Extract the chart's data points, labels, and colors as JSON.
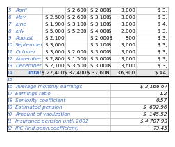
{
  "top_rows": [
    {
      "row": "5",
      "label": "April",
      "c1": "",
      "c2": "$ 2,600",
      "c3": "$ 2,800",
      "c4": "$      3,000",
      "c5": "$ 3,"
    },
    {
      "row": "6",
      "label": "May",
      "c1": "$ 2,500",
      "c2": "$ 2,600",
      "c3": "$ 3,100",
      "c4": "$      3,000",
      "c5": "$ 3,"
    },
    {
      "row": "7",
      "label": "June",
      "c1": "$ 1,900",
      "c2": "$ 3,100",
      "c3": "$ 3,100",
      "c4": "$      3,000",
      "c5": "$ 4,"
    },
    {
      "row": "8",
      "label": "July",
      "c1": "$ 5,000",
      "c2": "$ 5,200",
      "c3": "$ 4,000",
      "c4": "$      2,000",
      "c5": "$ 3,"
    },
    {
      "row": "9",
      "label": "August",
      "c1": "$ 2,100",
      "c2": "",
      "c3": "$ 2,600",
      "c4": "$        800",
      "c5": "$ 3,"
    },
    {
      "row": "10",
      "label": "September",
      "c1": "$ 3,000",
      "c2": "",
      "c3": "$ 3,100",
      "c4": "$      3,600",
      "c5": "$ 3,"
    },
    {
      "row": "11",
      "label": "October",
      "c1": "$ 3,000",
      "c2": "$ 2,000",
      "c3": "$ 3,000",
      "c4": "$      3,600",
      "c5": "$ 3,"
    },
    {
      "row": "12",
      "label": "November",
      "c1": "$ 2,800",
      "c2": "$ 1,500",
      "c3": "$ 3,000",
      "c4": "$      3,600",
      "c5": "$ 3,"
    },
    {
      "row": "13",
      "label": "December",
      "c1": "$ 2,100",
      "c2": "$ 3,500",
      "c3": "$ 3,000",
      "c4": "$      3,600",
      "c5": "$ 3,"
    },
    {
      "row": "14",
      "label": "Total",
      "c1": "$ 22,400",
      "c2": "$ 32,400",
      "c3": "$ 37,600",
      "c4": "$     36,300",
      "c5": "$ 44,"
    }
  ],
  "bottom_rows": [
    {
      "row": "16",
      "label": "Average monthly earnings",
      "value": "$ 3,166.67"
    },
    {
      "row": "17",
      "label": "Earnings ratio",
      "value": "1.2"
    },
    {
      "row": "18",
      "label": "Seniority coefficient",
      "value": "0.57"
    },
    {
      "row": "19",
      "label": "Estimated pension",
      "value": "$  692.96"
    },
    {
      "row": "20",
      "label": "Amount of vaolization",
      "value": "$  145.52"
    },
    {
      "row": "21",
      "label": "Insurance pension until 2002",
      "value": "$ 4,707.93"
    },
    {
      "row": "22",
      "label": "IPC (ind.penn.coefficient)",
      "value": "73.45"
    }
  ],
  "row_number_color": "#4472C4",
  "label_color": "#4472C4",
  "grid_color_light": "#C0C0C0",
  "grid_color_dark": "#000000",
  "total_bg": "#E8E8E8",
  "font_size": 5.2
}
